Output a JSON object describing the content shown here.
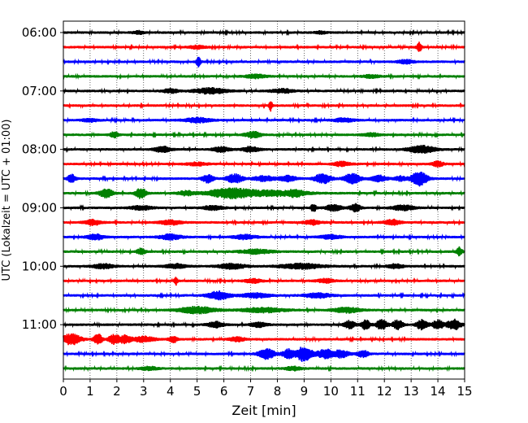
{
  "chart_data": {
    "type": "line",
    "title": "",
    "xlabel": "Zeit  [min]",
    "ylabel": "UTC (Lokalzeit = UTC + 01:00)",
    "xlim": [
      0,
      15
    ],
    "x_ticks": [
      0,
      1,
      2,
      3,
      4,
      5,
      6,
      7,
      8,
      9,
      10,
      11,
      12,
      13,
      14,
      15
    ],
    "y_tick_labels": [
      "06:00",
      "07:00",
      "08:00",
      "09:00",
      "10:00",
      "11:00"
    ],
    "row_interval_minutes": 15,
    "first_row": "06:00",
    "last_row": "11:45",
    "grid_x": true,
    "grid_style": "dotted",
    "trace_colors": [
      "#000000",
      "#ff0000",
      "#0000ff",
      "#008000"
    ],
    "color_cycle": "black, red, blue, green (repeating per row)",
    "base_amplitude": 0.25,
    "rows": [
      {
        "time": "06:00",
        "color": "#000000",
        "events": [
          {
            "t": 2.8,
            "amp": 0.3,
            "dur": 0.2
          },
          {
            "t": 9.6,
            "amp": 0.25,
            "dur": 0.2
          }
        ]
      },
      {
        "time": "06:15",
        "color": "#ff0000",
        "events": [
          {
            "t": 13.3,
            "amp": 1.0,
            "dur": 0.08
          },
          {
            "t": 5.0,
            "amp": 0.3,
            "dur": 0.3
          }
        ]
      },
      {
        "time": "06:30",
        "color": "#0000ff",
        "events": [
          {
            "t": 5.05,
            "amp": 0.9,
            "dur": 0.08
          },
          {
            "t": 12.8,
            "amp": 0.35,
            "dur": 0.3
          }
        ]
      },
      {
        "time": "06:45",
        "color": "#008000",
        "events": [
          {
            "t": 7.2,
            "amp": 0.35,
            "dur": 0.4
          },
          {
            "t": 11.5,
            "amp": 0.3,
            "dur": 0.3
          }
        ]
      },
      {
        "time": "07:00",
        "color": "#000000",
        "events": [
          {
            "t": 5.5,
            "amp": 0.55,
            "dur": 0.6
          },
          {
            "t": 8.2,
            "amp": 0.4,
            "dur": 0.4
          },
          {
            "t": 4.0,
            "amp": 0.4,
            "dur": 0.3
          }
        ]
      },
      {
        "time": "07:15",
        "color": "#ff0000",
        "events": [
          {
            "t": 7.75,
            "amp": 1.0,
            "dur": 0.06
          }
        ]
      },
      {
        "time": "07:30",
        "color": "#0000ff",
        "events": [
          {
            "t": 5.0,
            "amp": 0.45,
            "dur": 0.5
          },
          {
            "t": 1.0,
            "amp": 0.3,
            "dur": 0.3
          },
          {
            "t": 10.5,
            "amp": 0.35,
            "dur": 0.4
          }
        ]
      },
      {
        "time": "07:45",
        "color": "#008000",
        "events": [
          {
            "t": 1.9,
            "amp": 0.55,
            "dur": 0.15
          },
          {
            "t": 7.1,
            "amp": 0.6,
            "dur": 0.3
          },
          {
            "t": 11.5,
            "amp": 0.35,
            "dur": 0.3
          }
        ]
      },
      {
        "time": "08:00",
        "color": "#000000",
        "events": [
          {
            "t": 3.7,
            "amp": 0.55,
            "dur": 0.3
          },
          {
            "t": 5.9,
            "amp": 0.5,
            "dur": 0.3
          },
          {
            "t": 7.0,
            "amp": 0.5,
            "dur": 0.3
          },
          {
            "t": 13.4,
            "amp": 0.7,
            "dur": 0.5
          }
        ]
      },
      {
        "time": "08:15",
        "color": "#ff0000",
        "events": [
          {
            "t": 10.4,
            "amp": 0.45,
            "dur": 0.3
          },
          {
            "t": 14.0,
            "amp": 0.55,
            "dur": 0.2
          },
          {
            "t": 5.0,
            "amp": 0.3,
            "dur": 0.4
          }
        ]
      },
      {
        "time": "08:30",
        "color": "#0000ff",
        "events": [
          {
            "t": 0.3,
            "amp": 0.8,
            "dur": 0.15
          },
          {
            "t": 5.4,
            "amp": 0.8,
            "dur": 0.2
          },
          {
            "t": 6.4,
            "amp": 0.85,
            "dur": 0.3
          },
          {
            "t": 7.5,
            "amp": 0.5,
            "dur": 0.4
          },
          {
            "t": 8.4,
            "amp": 0.55,
            "dur": 0.3
          },
          {
            "t": 9.7,
            "amp": 1.0,
            "dur": 0.3
          },
          {
            "t": 10.8,
            "amp": 1.0,
            "dur": 0.3
          },
          {
            "t": 11.8,
            "amp": 0.6,
            "dur": 0.3
          },
          {
            "t": 12.6,
            "amp": 0.45,
            "dur": 0.2
          },
          {
            "t": 13.3,
            "amp": 1.4,
            "dur": 0.3
          }
        ]
      },
      {
        "time": "08:45",
        "color": "#008000",
        "events": [
          {
            "t": 1.6,
            "amp": 0.9,
            "dur": 0.25
          },
          {
            "t": 2.9,
            "amp": 1.0,
            "dur": 0.2
          },
          {
            "t": 4.6,
            "amp": 0.45,
            "dur": 0.3
          },
          {
            "t": 6.2,
            "amp": 0.9,
            "dur": 0.8
          },
          {
            "t": 7.8,
            "amp": 0.5,
            "dur": 1.2
          },
          {
            "t": 8.7,
            "amp": 0.45,
            "dur": 0.3
          }
        ]
      },
      {
        "time": "09:00",
        "color": "#000000",
        "events": [
          {
            "t": 2.9,
            "amp": 0.4,
            "dur": 0.4
          },
          {
            "t": 5.6,
            "amp": 0.4,
            "dur": 0.4
          },
          {
            "t": 9.35,
            "amp": 0.75,
            "dur": 0.1
          },
          {
            "t": 10.1,
            "amp": 0.6,
            "dur": 0.3
          },
          {
            "t": 10.9,
            "amp": 0.75,
            "dur": 0.2
          },
          {
            "t": 12.7,
            "amp": 0.5,
            "dur": 0.4
          }
        ]
      },
      {
        "time": "09:15",
        "color": "#ff0000",
        "events": [
          {
            "t": 1.1,
            "amp": 0.5,
            "dur": 0.3
          },
          {
            "t": 4.0,
            "amp": 0.45,
            "dur": 0.4
          },
          {
            "t": 9.3,
            "amp": 0.45,
            "dur": 0.3
          },
          {
            "t": 12.3,
            "amp": 0.55,
            "dur": 0.3
          }
        ]
      },
      {
        "time": "09:30",
        "color": "#0000ff",
        "events": [
          {
            "t": 1.2,
            "amp": 0.55,
            "dur": 0.3
          },
          {
            "t": 4.0,
            "amp": 0.55,
            "dur": 0.4
          },
          {
            "t": 6.8,
            "amp": 0.45,
            "dur": 0.4
          },
          {
            "t": 10.0,
            "amp": 0.4,
            "dur": 0.4
          }
        ]
      },
      {
        "time": "09:45",
        "color": "#008000",
        "events": [
          {
            "t": 2.9,
            "amp": 0.6,
            "dur": 0.15
          },
          {
            "t": 7.2,
            "amp": 0.4,
            "dur": 0.6
          },
          {
            "t": 14.8,
            "amp": 0.85,
            "dur": 0.1
          }
        ]
      },
      {
        "time": "10:00",
        "color": "#000000",
        "events": [
          {
            "t": 1.5,
            "amp": 0.45,
            "dur": 0.4
          },
          {
            "t": 4.2,
            "amp": 0.45,
            "dur": 0.4
          },
          {
            "t": 6.3,
            "amp": 0.5,
            "dur": 0.5
          },
          {
            "t": 8.9,
            "amp": 0.5,
            "dur": 0.8
          },
          {
            "t": 12.4,
            "amp": 0.4,
            "dur": 0.3
          }
        ]
      },
      {
        "time": "10:15",
        "color": "#ff0000",
        "events": [
          {
            "t": 4.2,
            "amp": 0.85,
            "dur": 0.06
          },
          {
            "t": 7.1,
            "amp": 0.4,
            "dur": 0.3
          },
          {
            "t": 9.8,
            "amp": 0.4,
            "dur": 0.3
          }
        ]
      },
      {
        "time": "10:30",
        "color": "#0000ff",
        "events": [
          {
            "t": 5.8,
            "amp": 0.8,
            "dur": 0.4
          },
          {
            "t": 7.2,
            "amp": 0.45,
            "dur": 0.5
          },
          {
            "t": 9.5,
            "amp": 0.45,
            "dur": 0.5
          }
        ]
      },
      {
        "time": "10:45",
        "color": "#008000",
        "events": [
          {
            "t": 5.0,
            "amp": 0.65,
            "dur": 0.7
          },
          {
            "t": 7.5,
            "amp": 0.45,
            "dur": 0.8
          },
          {
            "t": 10.6,
            "amp": 0.5,
            "dur": 0.5
          }
        ]
      },
      {
        "time": "11:00",
        "color": "#000000",
        "events": [
          {
            "t": 5.7,
            "amp": 0.55,
            "dur": 0.3
          },
          {
            "t": 7.3,
            "amp": 0.45,
            "dur": 0.3
          },
          {
            "t": 10.7,
            "amp": 0.8,
            "dur": 0.2
          },
          {
            "t": 11.3,
            "amp": 0.95,
            "dur": 0.15
          },
          {
            "t": 11.9,
            "amp": 0.95,
            "dur": 0.2
          },
          {
            "t": 12.5,
            "amp": 0.9,
            "dur": 0.2
          },
          {
            "t": 13.4,
            "amp": 0.95,
            "dur": 0.2
          },
          {
            "t": 14.0,
            "amp": 0.9,
            "dur": 0.2
          },
          {
            "t": 14.6,
            "amp": 1.0,
            "dur": 0.25
          }
        ]
      },
      {
        "time": "11:15",
        "color": "#ff0000",
        "events": [
          {
            "t": 0.3,
            "amp": 1.1,
            "dur": 0.35
          },
          {
            "t": 1.3,
            "amp": 1.15,
            "dur": 0.15
          },
          {
            "t": 1.9,
            "amp": 0.9,
            "dur": 0.2
          },
          {
            "t": 2.3,
            "amp": 0.75,
            "dur": 0.2
          },
          {
            "t": 3.0,
            "amp": 0.55,
            "dur": 0.4
          },
          {
            "t": 4.1,
            "amp": 0.7,
            "dur": 0.15
          },
          {
            "t": 6.5,
            "amp": 0.4,
            "dur": 0.3
          }
        ]
      },
      {
        "time": "11:30",
        "color": "#0000ff",
        "events": [
          {
            "t": 7.6,
            "amp": 1.0,
            "dur": 0.3
          },
          {
            "t": 8.4,
            "amp": 0.9,
            "dur": 0.2
          },
          {
            "t": 9.0,
            "amp": 1.5,
            "dur": 0.3
          },
          {
            "t": 9.8,
            "amp": 0.9,
            "dur": 0.3
          },
          {
            "t": 10.4,
            "amp": 0.7,
            "dur": 0.3
          },
          {
            "t": 11.2,
            "amp": 0.7,
            "dur": 0.2
          }
        ]
      },
      {
        "time": "11:45",
        "color": "#008000",
        "events": [
          {
            "t": 3.2,
            "amp": 0.35,
            "dur": 0.3
          },
          {
            "t": 8.6,
            "amp": 0.35,
            "dur": 0.3
          }
        ]
      }
    ]
  }
}
